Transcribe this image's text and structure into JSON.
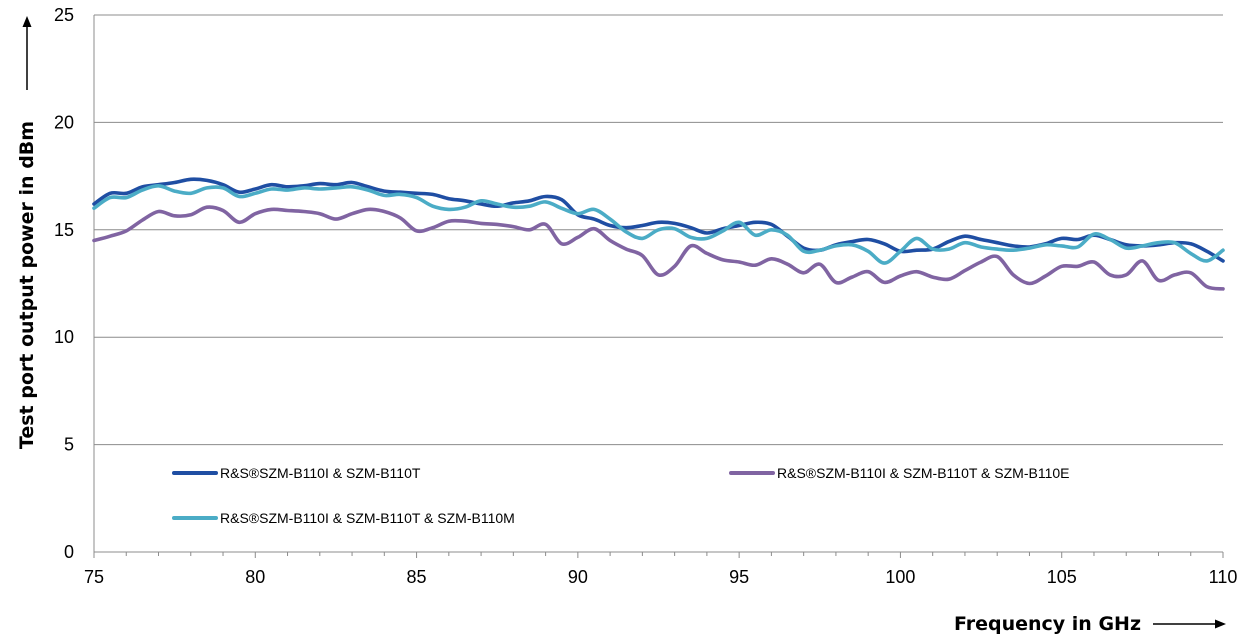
{
  "chart_data": {
    "type": "line",
    "xlabel": "Frequency in GHz",
    "ylabel": "Test port output power in dBm",
    "xlim": [
      75,
      110
    ],
    "ylim": [
      0,
      25
    ],
    "x_ticks": [
      "75",
      "80",
      "85",
      "90",
      "95",
      "100",
      "105",
      "110"
    ],
    "y_ticks": [
      "0",
      "5",
      "10",
      "15",
      "20",
      "25"
    ],
    "grid": "horizontal",
    "legend_position": "bottom",
    "series": [
      {
        "name": "R&S®SZM-B110I & SZM-B110T",
        "color": "#1f4ea3",
        "x": [
          75,
          75.5,
          76,
          76.5,
          77,
          77.5,
          78,
          78.5,
          79,
          79.5,
          80,
          80.5,
          81,
          81.5,
          82,
          82.5,
          83,
          83.5,
          84,
          84.5,
          85,
          85.5,
          86,
          86.5,
          87,
          87.5,
          88,
          88.5,
          89,
          89.5,
          90,
          90.5,
          91,
          91.5,
          92,
          92.5,
          93,
          93.5,
          94,
          94.5,
          95,
          95.5,
          96,
          96.5,
          97,
          97.5,
          98,
          98.5,
          99,
          99.5,
          100,
          100.5,
          101,
          101.5,
          102,
          102.5,
          103,
          103.5,
          104,
          104.5,
          105,
          105.5,
          106,
          106.5,
          107,
          107.5,
          108,
          108.5,
          109,
          109.5,
          110
        ],
        "values": [
          16.2,
          16.7,
          16.7,
          17.0,
          17.1,
          17.2,
          17.35,
          17.3,
          17.1,
          16.75,
          16.9,
          17.1,
          17.0,
          17.05,
          17.15,
          17.1,
          17.2,
          17.0,
          16.8,
          16.75,
          16.7,
          16.65,
          16.45,
          16.35,
          16.2,
          16.1,
          16.25,
          16.35,
          16.55,
          16.4,
          15.7,
          15.5,
          15.2,
          15.1,
          15.2,
          15.35,
          15.3,
          15.1,
          14.85,
          15.05,
          15.2,
          15.35,
          15.25,
          14.7,
          14.15,
          14.05,
          14.3,
          14.45,
          14.55,
          14.35,
          14.0,
          14.05,
          14.1,
          14.45,
          14.7,
          14.55,
          14.4,
          14.25,
          14.2,
          14.35,
          14.6,
          14.55,
          14.75,
          14.55,
          14.3,
          14.25,
          14.3,
          14.4,
          14.35,
          14.0,
          13.55
        ]
      },
      {
        "name": "R&S®SZM-B110I & SZM-B110T & SZM-B110E",
        "color": "#8064a2",
        "x": [
          75,
          75.5,
          76,
          76.5,
          77,
          77.5,
          78,
          78.5,
          79,
          79.5,
          80,
          80.5,
          81,
          81.5,
          82,
          82.5,
          83,
          83.5,
          84,
          84.5,
          85,
          85.5,
          86,
          86.5,
          87,
          87.5,
          88,
          88.5,
          89,
          89.5,
          90,
          90.5,
          91,
          91.5,
          92,
          92.5,
          93,
          93.5,
          94,
          94.5,
          95,
          95.5,
          96,
          96.5,
          97,
          97.5,
          98,
          98.5,
          99,
          99.5,
          100,
          100.5,
          101,
          101.5,
          102,
          102.5,
          103,
          103.5,
          104,
          104.5,
          105,
          105.5,
          106,
          106.5,
          107,
          107.5,
          108,
          108.5,
          109,
          109.5,
          110
        ],
        "values": [
          14.5,
          14.7,
          14.95,
          15.45,
          15.85,
          15.65,
          15.7,
          16.05,
          15.9,
          15.35,
          15.75,
          15.95,
          15.9,
          15.85,
          15.75,
          15.5,
          15.75,
          15.95,
          15.85,
          15.55,
          14.95,
          15.1,
          15.4,
          15.4,
          15.3,
          15.25,
          15.15,
          15.0,
          15.25,
          14.35,
          14.65,
          15.05,
          14.5,
          14.1,
          13.8,
          12.9,
          13.3,
          14.25,
          13.9,
          13.6,
          13.5,
          13.35,
          13.65,
          13.4,
          13.0,
          13.4,
          12.55,
          12.8,
          13.05,
          12.55,
          12.85,
          13.05,
          12.8,
          12.7,
          13.1,
          13.5,
          13.75,
          12.9,
          12.5,
          12.85,
          13.3,
          13.3,
          13.5,
          12.9,
          12.9,
          13.55,
          12.65,
          12.9,
          13.0,
          12.35,
          12.25
        ]
      },
      {
        "name": "R&S®SZM-B110I & SZM-B110T & SZM-B110M",
        "color": "#4bacc6",
        "x": [
          75,
          75.5,
          76,
          76.5,
          77,
          77.5,
          78,
          78.5,
          79,
          79.5,
          80,
          80.5,
          81,
          81.5,
          82,
          82.5,
          83,
          83.5,
          84,
          84.5,
          85,
          85.5,
          86,
          86.5,
          87,
          87.5,
          88,
          88.5,
          89,
          89.5,
          90,
          90.5,
          91,
          91.5,
          92,
          92.5,
          93,
          93.5,
          94,
          94.5,
          95,
          95.5,
          96,
          96.5,
          97,
          97.5,
          98,
          98.5,
          99,
          99.5,
          100,
          100.5,
          101,
          101.5,
          102,
          102.5,
          103,
          103.5,
          104,
          104.5,
          105,
          105.5,
          106,
          106.5,
          107,
          107.5,
          108,
          108.5,
          109,
          109.5,
          110
        ],
        "values": [
          16.0,
          16.5,
          16.5,
          16.85,
          17.05,
          16.8,
          16.7,
          16.95,
          16.95,
          16.55,
          16.7,
          16.9,
          16.85,
          16.95,
          16.9,
          16.95,
          17.0,
          16.85,
          16.6,
          16.65,
          16.5,
          16.1,
          15.95,
          16.05,
          16.35,
          16.2,
          16.05,
          16.1,
          16.3,
          16.0,
          15.75,
          15.95,
          15.5,
          14.9,
          14.6,
          15.0,
          15.05,
          14.65,
          14.6,
          14.95,
          15.35,
          14.75,
          15.0,
          14.75,
          14.0,
          14.05,
          14.25,
          14.3,
          14.0,
          13.45,
          14.0,
          14.6,
          14.1,
          14.1,
          14.4,
          14.2,
          14.1,
          14.05,
          14.15,
          14.3,
          14.25,
          14.2,
          14.8,
          14.55,
          14.15,
          14.25,
          14.4,
          14.4,
          13.9,
          13.55,
          14.05
        ]
      }
    ]
  }
}
